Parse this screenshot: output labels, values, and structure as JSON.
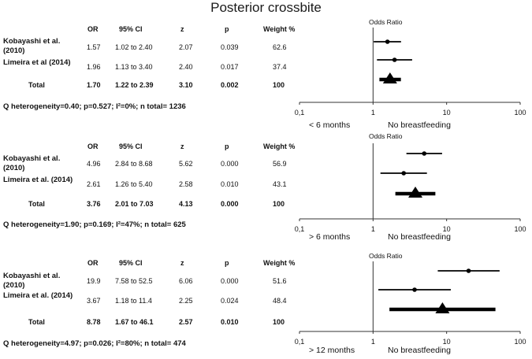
{
  "title": "Posterior crossbite",
  "columns": {
    "or": "OR",
    "ci": "95% CI",
    "z": "z",
    "p": "p",
    "weight": "Weight %"
  },
  "panels": [
    {
      "studies": [
        {
          "name": "Kobayashi et al. (2010)",
          "or": "1.57",
          "ci": "1.02 to 2.40",
          "z": "2.07",
          "p": "0.039",
          "weight": "62.6"
        },
        {
          "name": "Limeira et al (2014)",
          "or": "1.96",
          "ci": "1.13 to 3.40",
          "z": "2.40",
          "p": "0.017",
          "weight": "37.4"
        }
      ],
      "total": {
        "label": "Total",
        "or": "1.70",
        "ci": "1.22 to 2.39",
        "z": "3.10",
        "p": "0.002",
        "weight": "100"
      },
      "heterogeneity": "Q heterogeneity=0.40; p=0.527; I²=0%; n total= 1236",
      "plot_title": "Odds Ratio",
      "left_label": "< 6 months",
      "right_label": "No breastfeeding",
      "ticks": [
        "0,1",
        "1",
        "10",
        "100"
      ]
    },
    {
      "studies": [
        {
          "name": "Kobayashi et al. (2010)",
          "or": "4.96",
          "ci": "2.84 to 8.68",
          "z": "5.62",
          "p": "0.000",
          "weight": "56.9"
        },
        {
          "name": "Limeira et al. (2014)",
          "or": "2.61",
          "ci": "1.26 to 5.40",
          "z": "2.58",
          "p": "0.010",
          "weight": "43.1"
        }
      ],
      "total": {
        "label": "Total",
        "or": "3.76",
        "ci": "2.01 to 7.03",
        "z": "4.13",
        "p": "0.000",
        "weight": "100"
      },
      "heterogeneity": "Q heterogeneity=1.90; p=0.169; I²=47%; n total= 625",
      "plot_title": "Odds Ratio",
      "left_label": "> 6 months",
      "right_label": "No breastfeeding",
      "ticks": [
        "0,1",
        "1",
        "10",
        "100"
      ]
    },
    {
      "studies": [
        {
          "name": "Kobayashi et al. (2010)",
          "or": "19.9",
          "ci": "7.58 to 52.5",
          "z": "6.06",
          "p": "0.000",
          "weight": "51.6"
        },
        {
          "name": "Limeira et al. (2014)",
          "or": "3.67",
          "ci": "1.18 to 11.4",
          "z": "2.25",
          "p": "0.024",
          "weight": "48.4"
        }
      ],
      "total": {
        "label": "Total",
        "or": "8.78",
        "ci": "1.67 to 46.1",
        "z": "2.57",
        "p": "0.010",
        "weight": "100"
      },
      "heterogeneity": "Q heterogeneity=4.97; p=0.026; I²=80%; n total= 474",
      "plot_title": "Odds Ratio",
      "left_label": "> 12 months",
      "right_label": "No breastfeeding",
      "ticks": [
        "0,1",
        "1",
        "10",
        "100"
      ]
    }
  ],
  "chart_data": [
    {
      "type": "forest",
      "title": "Odds Ratio",
      "xscale": "log",
      "xlim": [
        0.1,
        100
      ],
      "reference": 1,
      "ticks": [
        0.1,
        1,
        10,
        100
      ],
      "studies": [
        {
          "name": "Kobayashi et al. (2010)",
          "or": 1.57,
          "lo": 1.02,
          "hi": 2.4,
          "weight": 62.6
        },
        {
          "name": "Limeira et al (2014)",
          "or": 1.96,
          "lo": 1.13,
          "hi": 3.4,
          "weight": 37.4
        }
      ],
      "total": {
        "or": 1.7,
        "lo": 1.22,
        "hi": 2.39
      }
    },
    {
      "type": "forest",
      "title": "Odds Ratio",
      "xscale": "log",
      "xlim": [
        0.1,
        100
      ],
      "reference": 1,
      "ticks": [
        0.1,
        1,
        10,
        100
      ],
      "studies": [
        {
          "name": "Kobayashi et al. (2010)",
          "or": 4.96,
          "lo": 2.84,
          "hi": 8.68,
          "weight": 56.9
        },
        {
          "name": "Limeira et al. (2014)",
          "or": 2.61,
          "lo": 1.26,
          "hi": 5.4,
          "weight": 43.1
        }
      ],
      "total": {
        "or": 3.76,
        "lo": 2.01,
        "hi": 7.03
      }
    },
    {
      "type": "forest",
      "title": "Odds Ratio",
      "xscale": "log",
      "xlim": [
        0.1,
        100
      ],
      "reference": 1,
      "ticks": [
        0.1,
        1,
        10,
        100
      ],
      "studies": [
        {
          "name": "Kobayashi et al. (2010)",
          "or": 19.9,
          "lo": 7.58,
          "hi": 52.5,
          "weight": 51.6
        },
        {
          "name": "Limeira et al. (2014)",
          "or": 3.67,
          "lo": 1.18,
          "hi": 11.4,
          "weight": 48.4
        }
      ],
      "total": {
        "or": 8.78,
        "lo": 1.67,
        "hi": 46.1
      }
    }
  ]
}
